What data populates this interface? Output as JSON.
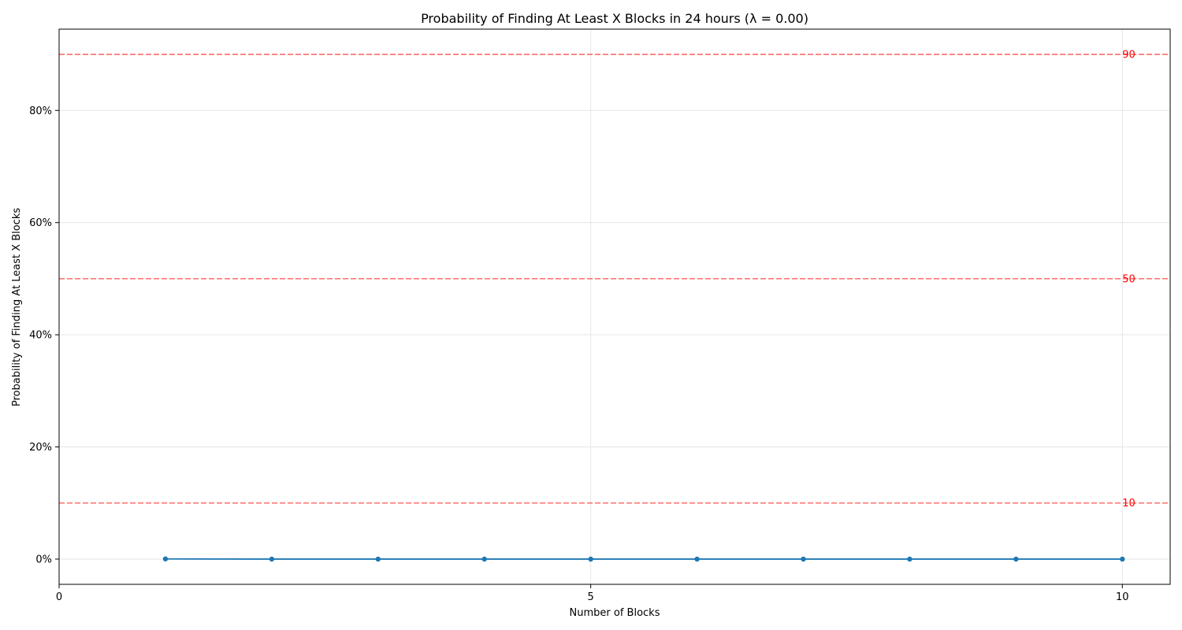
{
  "chart_data": {
    "type": "line",
    "title": "Probability of Finding At Least X Blocks in 24 hours (λ = 0.00)",
    "xlabel": "Number of Blocks",
    "ylabel": "Probability of Finding At Least X Blocks",
    "xlim": [
      0,
      10.45
    ],
    "ylim": [
      -0.045,
      0.945
    ],
    "x_ticks": [
      0,
      5,
      10
    ],
    "x_tick_labels": [
      "0",
      "5",
      "10"
    ],
    "y_ticks": [
      0,
      0.2,
      0.4,
      0.6,
      0.8
    ],
    "y_tick_labels": [
      "0%",
      "20%",
      "40%",
      "60%",
      "80%"
    ],
    "grid": true,
    "series": [
      {
        "x": [
          1,
          2,
          3,
          4,
          5,
          6,
          7,
          8,
          9,
          10
        ],
        "values": [
          0.0003,
          0,
          0,
          0,
          0,
          0,
          0,
          0,
          0,
          0
        ],
        "color": "#1f77b4",
        "marker": "circle"
      }
    ],
    "reference_lines": [
      {
        "y": 0.9,
        "label": "90",
        "color": "#ff0000"
      },
      {
        "y": 0.5,
        "label": "50",
        "color": "#ff0000"
      },
      {
        "y": 0.1,
        "label": "10",
        "color": "#ff0000"
      }
    ]
  }
}
